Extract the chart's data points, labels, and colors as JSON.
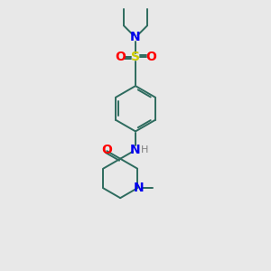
{
  "background_color": "#e8e8e8",
  "bond_color": "#2d6b5e",
  "atom_colors": {
    "N": "#0000ee",
    "O": "#ff0000",
    "S": "#cccc00",
    "H": "#808080",
    "C": "#2d6b5e"
  },
  "figsize": [
    3.0,
    3.0
  ],
  "dpi": 100
}
